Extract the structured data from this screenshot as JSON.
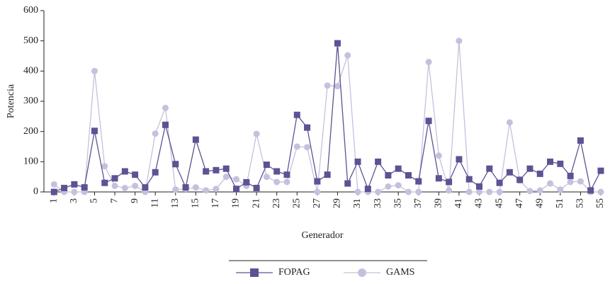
{
  "chart_data": {
    "type": "line",
    "x_label": "Generador",
    "y_label": "Potencia",
    "x": [
      1,
      2,
      3,
      4,
      5,
      6,
      7,
      8,
      9,
      10,
      11,
      12,
      13,
      14,
      15,
      16,
      17,
      18,
      19,
      20,
      21,
      22,
      23,
      24,
      25,
      26,
      27,
      28,
      29,
      30,
      31,
      32,
      33,
      34,
      35,
      36,
      37,
      38,
      39,
      40,
      41,
      42,
      43,
      44,
      45,
      46,
      47,
      48,
      49,
      50,
      51,
      52,
      53,
      54,
      55
    ],
    "xlim": [
      0,
      55
    ],
    "xticks": [
      1,
      3,
      5,
      7,
      9,
      11,
      13,
      15,
      17,
      19,
      21,
      23,
      25,
      27,
      29,
      31,
      33,
      35,
      37,
      39,
      41,
      43,
      45,
      47,
      49,
      51,
      53,
      55
    ],
    "ylim": [
      0,
      600
    ],
    "yticks": [
      0,
      100,
      200,
      300,
      400,
      500,
      600
    ],
    "grid": false,
    "legend": "bottom",
    "series": [
      {
        "name": "FOPAG",
        "color": "#5b5393",
        "marker": "square",
        "values": [
          0,
          13,
          25,
          15,
          202,
          30,
          45,
          68,
          57,
          15,
          65,
          222,
          92,
          15,
          173,
          68,
          72,
          77,
          10,
          32,
          13,
          90,
          68,
          57,
          255,
          213,
          35,
          57,
          492,
          28,
          100,
          10,
          100,
          55,
          77,
          55,
          35,
          235,
          45,
          33,
          108,
          42,
          18,
          77,
          30,
          65,
          40,
          77,
          60,
          100,
          93,
          53,
          170,
          5,
          70
        ]
      },
      {
        "name": "GAMS",
        "color": "#c5c1dd",
        "marker": "circle",
        "values": [
          25,
          0,
          0,
          0,
          400,
          85,
          20,
          13,
          20,
          0,
          193,
          278,
          8,
          10,
          15,
          5,
          10,
          50,
          42,
          20,
          192,
          50,
          33,
          33,
          150,
          148,
          0,
          352,
          350,
          452,
          0,
          0,
          0,
          18,
          22,
          0,
          0,
          430,
          120,
          5,
          500,
          0,
          0,
          0,
          0,
          230,
          38,
          3,
          5,
          28,
          8,
          33,
          35,
          0,
          0
        ]
      }
    ]
  }
}
